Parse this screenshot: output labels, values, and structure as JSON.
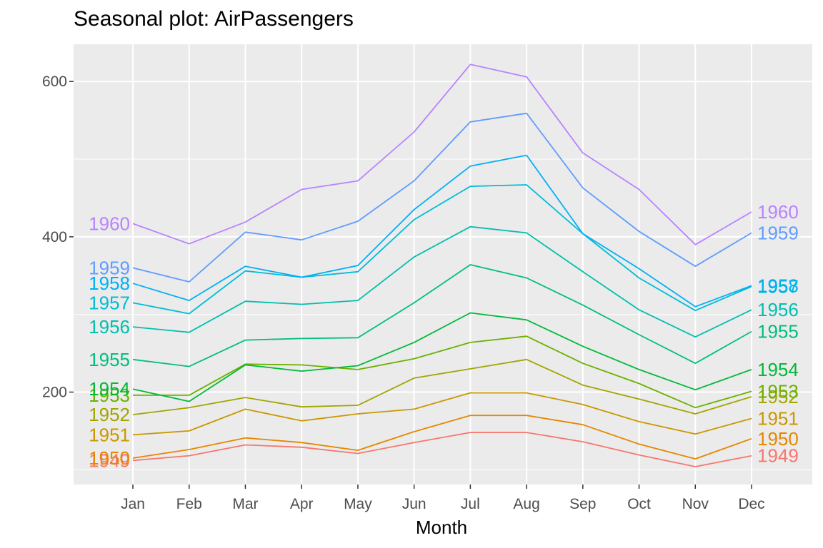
{
  "chart_data": {
    "type": "line",
    "title": "Seasonal plot: AirPassengers",
    "xlabel": "Month",
    "ylabel": "",
    "categories": [
      "Jan",
      "Feb",
      "Mar",
      "Apr",
      "May",
      "Jun",
      "Jul",
      "Aug",
      "Sep",
      "Oct",
      "Nov",
      "Dec"
    ],
    "ylim": [
      81,
      648
    ],
    "yticks": [
      200,
      400,
      600
    ],
    "grid": true,
    "legend": "none",
    "series": [
      {
        "name": "1949",
        "color": "#F8766D",
        "values": [
          112,
          118,
          132,
          129,
          121,
          135,
          148,
          148,
          136,
          119,
          104,
          118
        ]
      },
      {
        "name": "1950",
        "color": "#E58700",
        "values": [
          115,
          126,
          141,
          135,
          125,
          149,
          170,
          170,
          158,
          133,
          114,
          140
        ]
      },
      {
        "name": "1951",
        "color": "#C99800",
        "values": [
          145,
          150,
          178,
          163,
          172,
          178,
          199,
          199,
          184,
          162,
          146,
          166
        ]
      },
      {
        "name": "1952",
        "color": "#A3A500",
        "values": [
          171,
          180,
          193,
          181,
          183,
          218,
          230,
          242,
          209,
          191,
          172,
          194
        ]
      },
      {
        "name": "1953",
        "color": "#6BB100",
        "values": [
          196,
          196,
          236,
          235,
          229,
          243,
          264,
          272,
          237,
          211,
          180,
          201
        ]
      },
      {
        "name": "1954",
        "color": "#00BA38",
        "values": [
          204,
          188,
          235,
          227,
          234,
          264,
          302,
          293,
          259,
          229,
          203,
          229
        ]
      },
      {
        "name": "1955",
        "color": "#00BF7D",
        "values": [
          242,
          233,
          267,
          269,
          270,
          315,
          364,
          347,
          312,
          274,
          237,
          278
        ]
      },
      {
        "name": "1956",
        "color": "#00C0AF",
        "values": [
          284,
          277,
          317,
          313,
          318,
          374,
          413,
          405,
          355,
          306,
          271,
          306
        ]
      },
      {
        "name": "1957",
        "color": "#00BCD8",
        "values": [
          315,
          301,
          356,
          348,
          355,
          422,
          465,
          467,
          404,
          347,
          305,
          336
        ]
      },
      {
        "name": "1958",
        "color": "#00B0F6",
        "values": [
          340,
          318,
          362,
          348,
          363,
          435,
          491,
          505,
          404,
          359,
          310,
          337
        ]
      },
      {
        "name": "1959",
        "color": "#619CFF",
        "values": [
          360,
          342,
          406,
          396,
          420,
          472,
          548,
          559,
          463,
          407,
          362,
          405
        ]
      },
      {
        "name": "1960",
        "color": "#B983FF",
        "values": [
          417,
          391,
          419,
          461,
          472,
          535,
          622,
          606,
          508,
          461,
          390,
          432
        ]
      }
    ]
  }
}
